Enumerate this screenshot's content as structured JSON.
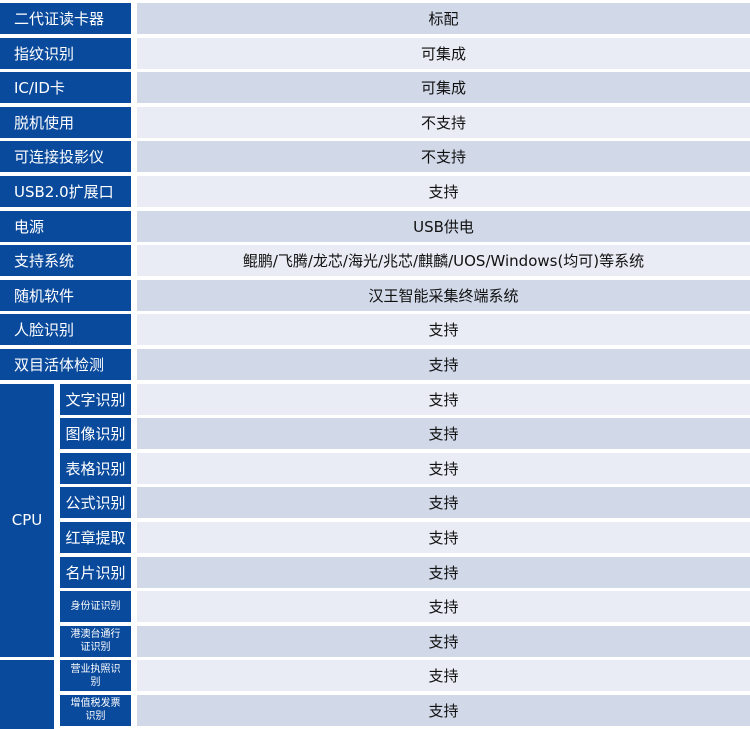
{
  "colors": {
    "label_bg": "#0a4a9c",
    "row_dark": "#d1d8e8",
    "row_light": "#e9ecf4"
  },
  "rows": [
    {
      "label": "二代证读卡器",
      "value": "标配"
    },
    {
      "label": "指纹识别",
      "value": "可集成"
    },
    {
      "label": "IC/ID卡",
      "value": "可集成"
    },
    {
      "label": "脱机使用",
      "value": "不支持"
    },
    {
      "label": "可连接投影仪",
      "value": "不支持"
    },
    {
      "label": "USB2.0扩展口",
      "value": "支持"
    },
    {
      "label": "电源",
      "value": "USB供电"
    },
    {
      "label": "支持系统",
      "value": "鲲鹏/飞腾/龙芯/海光/兆芯/麒麟/UOS/Windows(均可)等系统"
    },
    {
      "label": "随机软件",
      "value": "汉王智能采集终端系统"
    },
    {
      "label": "人脸识别",
      "value": "支持"
    },
    {
      "label": "双目活体检测",
      "value": "支持"
    }
  ],
  "groups": [
    {
      "label": "CPU",
      "items": [
        {
          "label": "文字识别",
          "value": "支持"
        },
        {
          "label": "图像识别",
          "value": "支持"
        },
        {
          "label": "表格识别",
          "value": "支持"
        },
        {
          "label": "公式识别",
          "value": "支持"
        },
        {
          "label": "红章提取",
          "value": "支持"
        },
        {
          "label": "名片识别",
          "value": "支持"
        },
        {
          "label": "身份证识别",
          "value": "支持",
          "small": true
        },
        {
          "label": "港澳台通行证识别",
          "value": "支持",
          "small": true
        }
      ]
    },
    {
      "label": "",
      "items": [
        {
          "label": "营业执照识别",
          "value": "支持",
          "small": true
        },
        {
          "label": "增值税发票识别",
          "value": "支持",
          "small": true
        }
      ]
    }
  ]
}
